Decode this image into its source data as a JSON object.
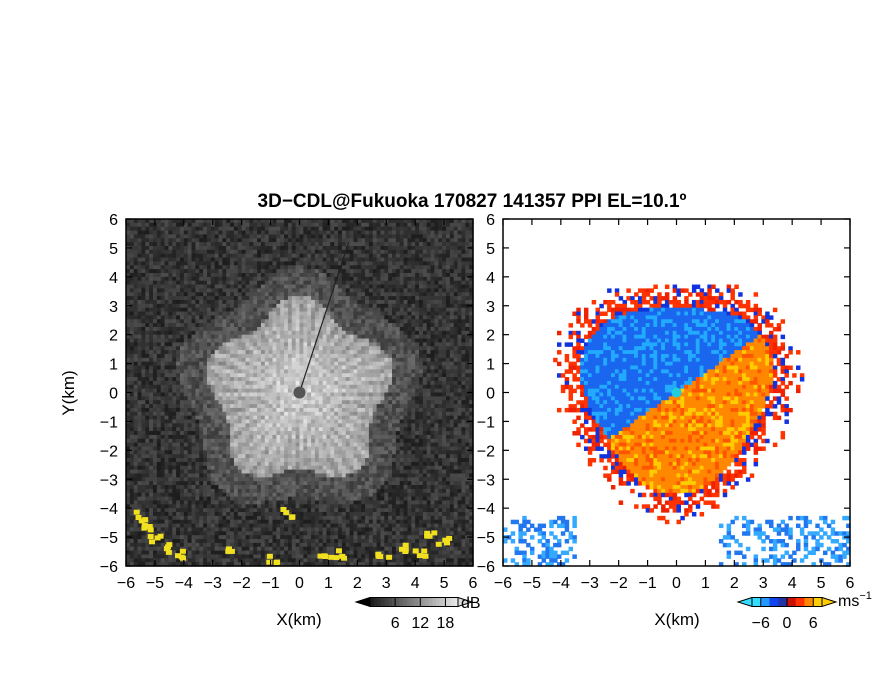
{
  "title": "3D−CDL@Fukuoka 170827 141357 PPI EL=10.1º",
  "chart_data": [
    {
      "type": "heatmap",
      "panel": "left",
      "xlabel": "X(km)",
      "ylabel": "Y(km)",
      "xlim": [
        -6,
        6
      ],
      "ylim": [
        -6,
        6
      ],
      "xticks": [
        "−6",
        "−5",
        "−4",
        "−3",
        "−2",
        "−1",
        "0",
        "1",
        "2",
        "3",
        "4",
        "5",
        "6"
      ],
      "yticks": [
        "−6",
        "−5",
        "−4",
        "−3",
        "−2",
        "−1",
        "0",
        "1",
        "2",
        "3",
        "4",
        "5",
        "6"
      ],
      "colorbar": {
        "unit": "dB",
        "ticks": [
          "6",
          "12",
          "18"
        ],
        "tick_values": [
          6,
          12,
          18
        ],
        "colormap": "grayscale",
        "range": [
          0,
          21
        ]
      },
      "center_marker": {
        "x": 0,
        "y": 0,
        "color": "#555555"
      },
      "echo_radius_km": 3.0,
      "clutter_color": "#f0e020"
    },
    {
      "type": "heatmap",
      "panel": "right",
      "xlabel": "X(km)",
      "ylabel": "",
      "xlim": [
        -6,
        6
      ],
      "ylim": [
        -6,
        6
      ],
      "xticks": [
        "−6",
        "−5",
        "−4",
        "−3",
        "−2",
        "−1",
        "0",
        "1",
        "2",
        "3",
        "4",
        "5",
        "6"
      ],
      "yticks": [
        "−6",
        "−5",
        "−4",
        "−3",
        "−2",
        "−1",
        "0",
        "1",
        "2",
        "3",
        "4",
        "5",
        "6"
      ],
      "colorbar": {
        "unit": "ms",
        "unit_exponent": "−1",
        "ticks": [
          "−6",
          "0",
          "6"
        ],
        "tick_values": [
          -6,
          0,
          6
        ],
        "colormap": "blue-red",
        "range": [
          -8,
          8
        ]
      },
      "center_marker": {
        "x": 0,
        "y": 0,
        "color": "#22ccdd"
      },
      "echo_radius_km": 3.2
    }
  ]
}
